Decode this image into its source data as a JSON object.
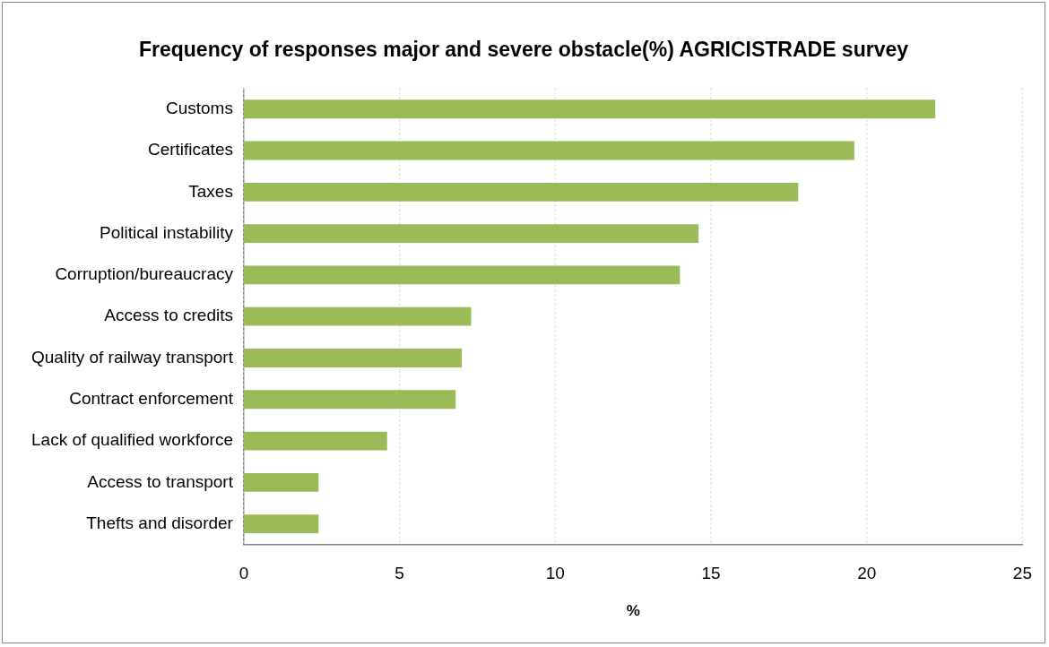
{
  "chart_data": {
    "type": "bar",
    "orientation": "horizontal",
    "title": "Frequency of responses major and severe obstacle(%) AGRICISTRADE survey",
    "xlabel": "%",
    "categories": [
      "Customs",
      "Certificates",
      "Taxes",
      "Political instability",
      "Corruption/bureaucracy",
      "Access to credits",
      "Quality of railway transport",
      "Contract enforcement",
      "Lack of qualified workforce",
      "Access to transport",
      "Thefts and disorder"
    ],
    "values": [
      22.2,
      19.6,
      17.8,
      14.6,
      14.0,
      7.3,
      7.0,
      6.8,
      4.6,
      2.4,
      2.4
    ],
    "color": "#9bbb59",
    "xlim": [
      0,
      25
    ],
    "xticks": [
      0,
      5,
      10,
      15,
      20,
      25
    ],
    "grid": "x",
    "legend": false
  }
}
